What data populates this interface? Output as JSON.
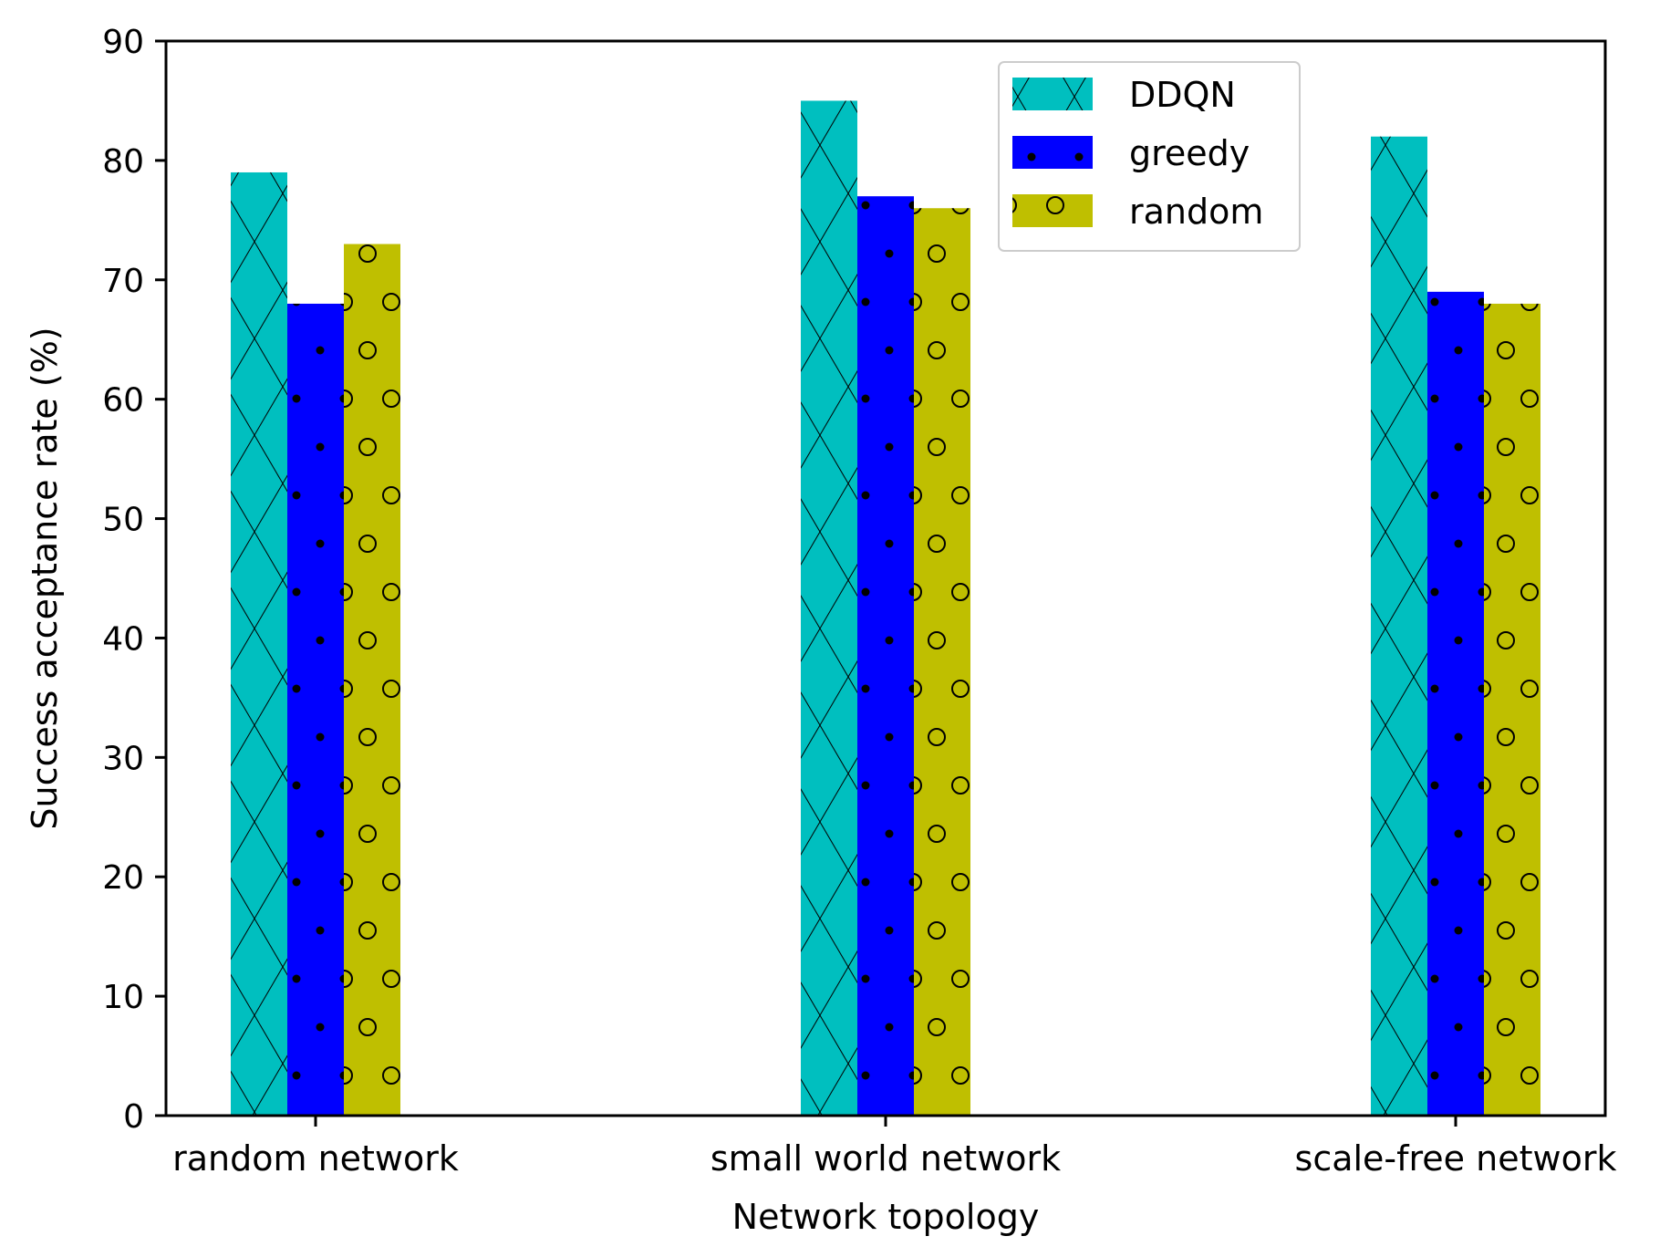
{
  "chart_data": {
    "type": "bar",
    "title": "",
    "xlabel": "Network topology",
    "ylabel": "Success acceptance rate (%)",
    "categories": [
      "random network",
      "small world network",
      "scale-free network"
    ],
    "ylim": [
      0,
      90
    ],
    "yticks": [
      0,
      10,
      20,
      30,
      40,
      50,
      60,
      70,
      80,
      90
    ],
    "grid": false,
    "legend_position": "top-center",
    "series": [
      {
        "name": "DDQN",
        "values": [
          79,
          85,
          82
        ],
        "color": "#00bfbf",
        "hatch": "crosshatch"
      },
      {
        "name": "greedy",
        "values": [
          68,
          77,
          69
        ],
        "color": "#0000ff",
        "hatch": "dots"
      },
      {
        "name": "random",
        "values": [
          73,
          76,
          68
        ],
        "color": "#bfbf00",
        "hatch": "circles"
      }
    ]
  }
}
